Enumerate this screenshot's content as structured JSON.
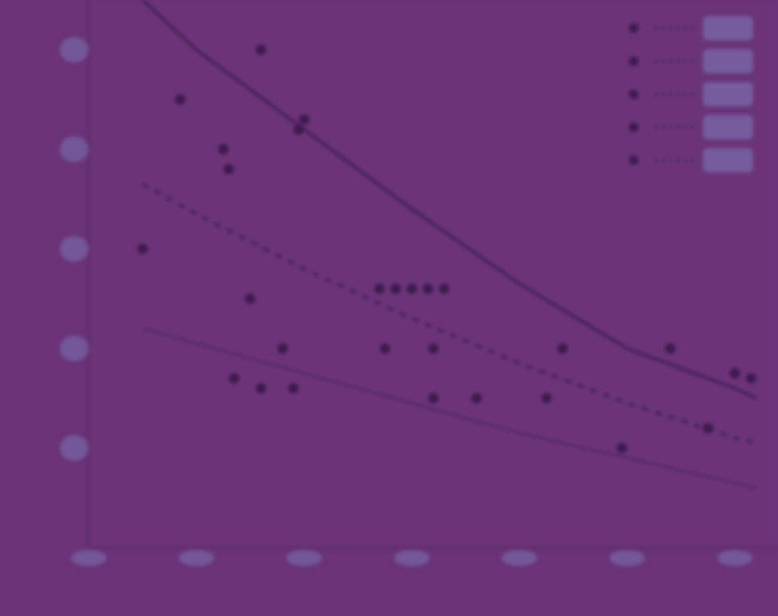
{
  "chart_data": {
    "type": "scatter",
    "title": "",
    "xlabel": "",
    "ylabel": "",
    "xlim": [
      0,
      6.25
    ],
    "ylim": [
      0,
      5.5
    ],
    "grid": false,
    "legend_position": "top-right",
    "colors": {
      "background": "#6a3378",
      "plot_area": "#6b3479",
      "axis": "#5a2a66",
      "marker": "#3e1a4f",
      "text": "#8fa6d6",
      "halo": "#7f83bf"
    },
    "points": [
      {
        "x": 0.5,
        "y": 3.0
      },
      {
        "x": 0.85,
        "y": 4.5
      },
      {
        "x": 1.25,
        "y": 4.0
      },
      {
        "x": 1.3,
        "y": 3.8
      },
      {
        "x": 1.35,
        "y": 1.7
      },
      {
        "x": 1.5,
        "y": 2.5
      },
      {
        "x": 1.6,
        "y": 1.6
      },
      {
        "x": 1.6,
        "y": 5.0
      },
      {
        "x": 1.8,
        "y": 2.0
      },
      {
        "x": 1.9,
        "y": 1.6
      },
      {
        "x": 1.95,
        "y": 4.2
      },
      {
        "x": 2.0,
        "y": 4.3
      },
      {
        "x": 2.75,
        "y": 2.0
      },
      {
        "x": 2.7,
        "y": 2.6
      },
      {
        "x": 2.85,
        "y": 2.6
      },
      {
        "x": 3.0,
        "y": 2.6
      },
      {
        "x": 3.15,
        "y": 2.6
      },
      {
        "x": 3.3,
        "y": 2.6
      },
      {
        "x": 3.2,
        "y": 2.0
      },
      {
        "x": 3.2,
        "y": 1.5
      },
      {
        "x": 3.6,
        "y": 1.5
      },
      {
        "x": 4.25,
        "y": 1.5
      },
      {
        "x": 4.4,
        "y": 2.0
      },
      {
        "x": 4.95,
        "y": 1.0
      },
      {
        "x": 5.4,
        "y": 2.0
      },
      {
        "x": 5.75,
        "y": 1.2
      },
      {
        "x": 6.0,
        "y": 1.75
      },
      {
        "x": 6.15,
        "y": 1.7
      }
    ],
    "fits": [
      {
        "style": "solid",
        "x": [
          0.5,
          1.0,
          2.0,
          3.0,
          4.0,
          5.0,
          6.0,
          6.2
        ],
        "y": [
          5.5,
          5.0,
          4.2,
          3.4,
          2.65,
          2.0,
          1.6,
          1.5
        ]
      },
      {
        "style": "dashed",
        "x": [
          0.5,
          1.0,
          2.0,
          3.0,
          4.0,
          5.0,
          6.0,
          6.2
        ],
        "y": [
          3.65,
          3.35,
          2.8,
          2.3,
          1.85,
          1.45,
          1.1,
          1.05
        ]
      },
      {
        "style": "thin",
        "x": [
          0.5,
          1.0,
          2.0,
          3.0,
          4.0,
          5.0,
          6.0,
          6.2
        ],
        "y": [
          2.2,
          2.05,
          1.75,
          1.45,
          1.15,
          0.9,
          0.65,
          0.6
        ]
      }
    ],
    "legend_entries": 5
  }
}
